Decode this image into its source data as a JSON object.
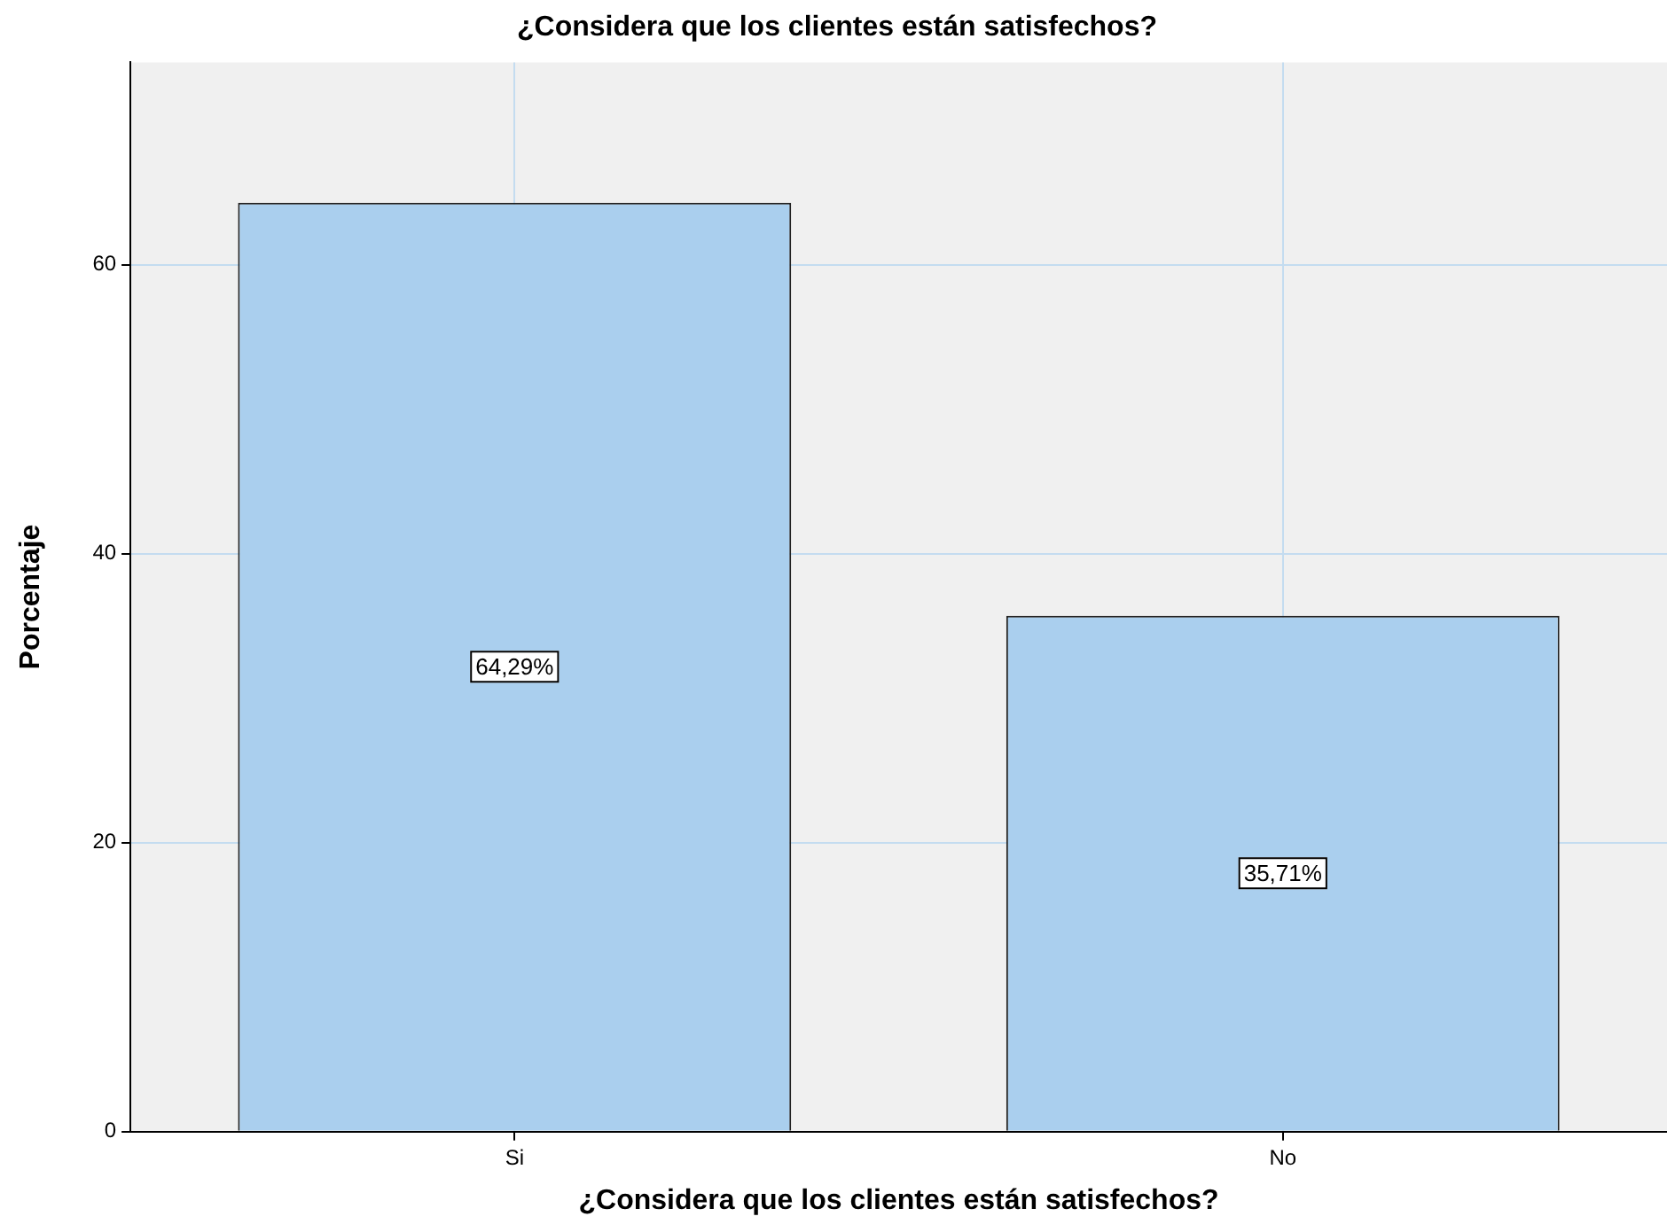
{
  "chart_data": {
    "type": "bar",
    "title": "¿Considera que los clientes están satisfechos?",
    "xlabel": "¿Considera que los clientes están satisfechos?",
    "ylabel": "Porcentaje",
    "categories": [
      "Si",
      "No"
    ],
    "values": [
      64.29,
      35.71
    ],
    "value_labels": [
      "64,29%",
      "35,71%"
    ],
    "color": "#aacfee",
    "ylim": [
      0,
      74
    ],
    "yticks": [
      0,
      20,
      40,
      60
    ],
    "grid": true
  }
}
